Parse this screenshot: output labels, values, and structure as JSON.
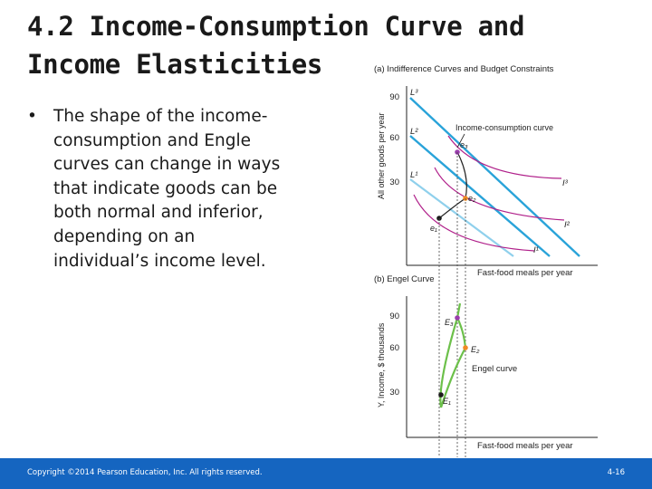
{
  "slide": {
    "title_line1": "4.2  Income-Consumption Curve and",
    "title_line2": "Income Elasticities",
    "bullet_marker": "•",
    "bullet": "The shape of the income-consumption and Engle curves can change in ways that indicate goods can be both normal and inferior, depending on an individual’s income level."
  },
  "figure": {
    "panel_a": {
      "title": "(a) Indifference Curves and Budget Constraints",
      "ylabel": "All other goods per year",
      "xlabel": "Fast-food meals per year",
      "yticks": [
        "30",
        "60",
        "90"
      ],
      "budget_labels": [
        "L³",
        "L²",
        "L¹"
      ],
      "indifference_labels": [
        "I³",
        "I²",
        "I¹"
      ],
      "points": [
        "e₃",
        "e₂",
        "e₁"
      ],
      "curve_label": "Income-consumption curve"
    },
    "panel_b": {
      "title": "(b) Engel Curve",
      "ylabel": "Y, Income, $ thousands",
      "xlabel": "Fast-food meals per year",
      "yticks": [
        "30",
        "60",
        "90"
      ],
      "points": [
        "E₃",
        "E₂",
        "E₁"
      ],
      "curve_label": "Engel curve"
    }
  },
  "colors": {
    "footer_bg": "#1565c0",
    "budget_line": "#29a3d9",
    "budget_line_l1": "#8fd0ec",
    "indifference": "#b0208a",
    "engel": "#6cc04a",
    "point_e3": "#9b3fae",
    "point_e2": "#f08a24",
    "point_e1": "#1a1a1a"
  },
  "footer": {
    "copyright": "Copyright ©2014 Pearson Education, Inc. All rights reserved.",
    "page": "4-16"
  }
}
